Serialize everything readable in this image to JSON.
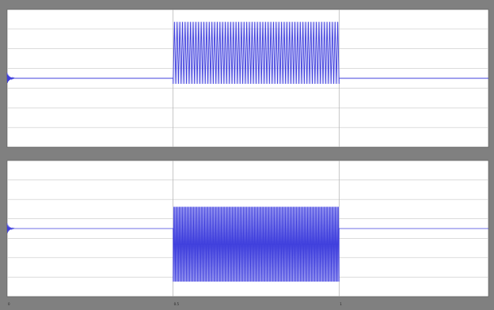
{
  "window": {
    "background_color": "#808080",
    "plot_background_color": "#ffffff",
    "grid_color": "#c8c8c8",
    "signal_color": "#4040dd",
    "fill_color": "#b7b7f7"
  },
  "chart_data": [
    {
      "type": "line",
      "title": "",
      "xlabel": "",
      "ylabel": "",
      "xlim": [
        0,
        1.0
      ],
      "ylim": [
        -1,
        1
      ],
      "grid": true,
      "x_ticks": [
        "0",
        "0.5",
        "1"
      ],
      "series": [
        {
          "values_description_free": true,
          "segments": [
            {
              "x0": 0.0,
              "x1": 0.02,
              "kind": "decaying-transient",
              "amplitude": 0.08
            },
            {
              "x0": 0.02,
              "x1": 0.5,
              "kind": "flat",
              "level": 0.0
            },
            {
              "x0": 0.5,
              "x1": 1.0,
              "kind": "oscillation",
              "cycles": 62,
              "min": -0.08,
              "max": 0.82
            },
            {
              "x0": 1.0,
              "x1": 1.45,
              "kind": "flat",
              "level": 0.0
            }
          ]
        }
      ]
    },
    {
      "type": "area",
      "title": "",
      "xlabel": "",
      "ylabel": "",
      "xlim": [
        0,
        1.0
      ],
      "ylim": [
        -1,
        1
      ],
      "grid": true,
      "x_ticks": [
        "0",
        "0.5",
        "1"
      ],
      "series": [
        {
          "segments": [
            {
              "x0": 0.0,
              "x1": 0.02,
              "kind": "decaying-transient",
              "amplitude": 0.08
            },
            {
              "x0": 0.02,
              "x1": 0.5,
              "kind": "flat",
              "level": 0.0
            },
            {
              "x0": 0.5,
              "x1": 1.0,
              "kind": "oscillation",
              "cycles": 150,
              "min": -0.78,
              "max": 0.32
            },
            {
              "x0": 1.0,
              "x1": 1.45,
              "kind": "flat",
              "level": 0.0
            }
          ]
        }
      ]
    }
  ],
  "x_axis": {
    "ticks": [
      "0",
      "0.5",
      "1"
    ]
  }
}
